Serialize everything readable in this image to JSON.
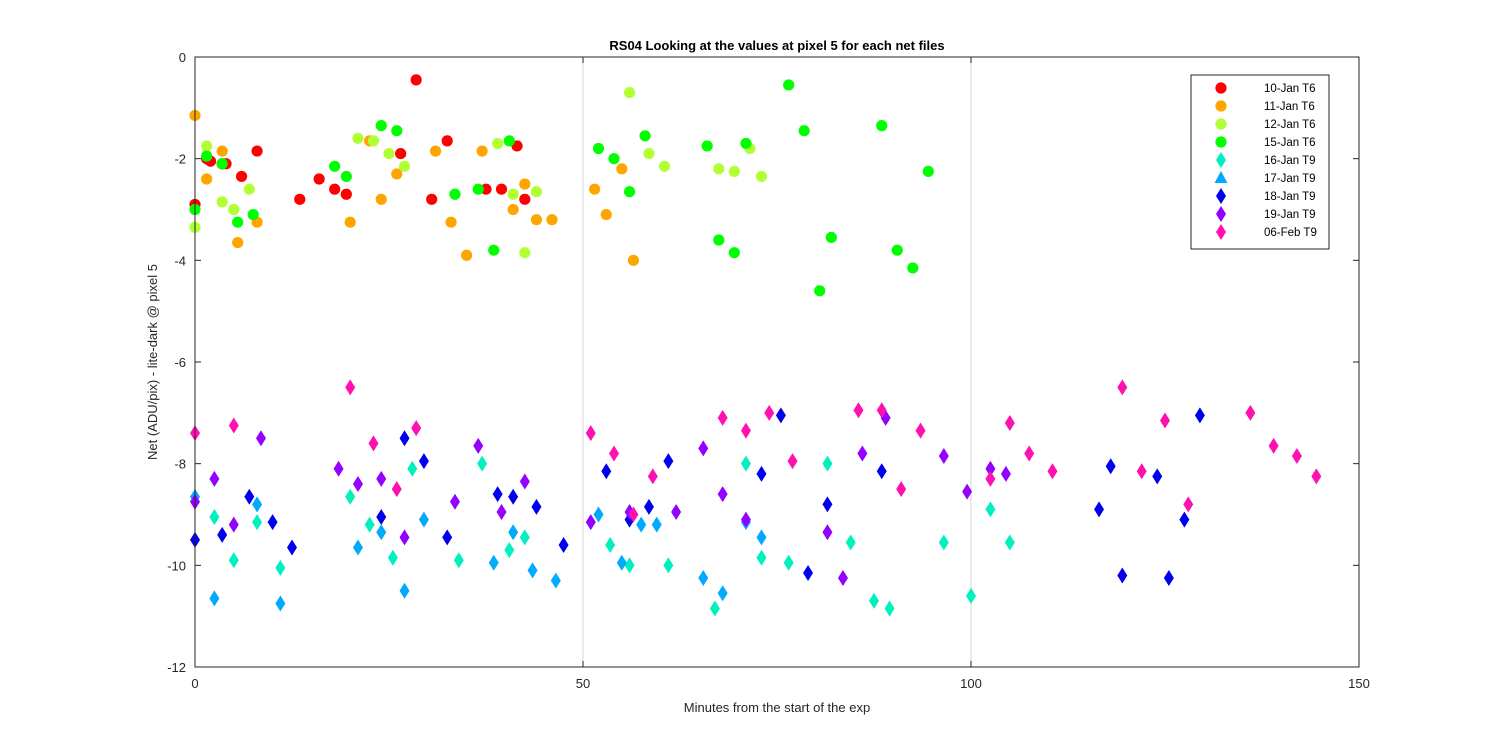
{
  "chart_data": {
    "type": "scatter",
    "title": "RS04  Looking at the values at pixel 5 for each net files",
    "xlabel": "Minutes from the start of the exp",
    "ylabel": "Net (ADU/pix) - lite-dark @ pixel 5",
    "xlim": [
      0,
      150
    ],
    "ylim": [
      -12,
      0
    ],
    "xticks": [
      0,
      50,
      100,
      150
    ],
    "yticks": [
      0,
      -2,
      -4,
      -6,
      -8,
      -10,
      -12
    ],
    "xtick_labels": [
      "0",
      "50",
      "100",
      "150"
    ],
    "ytick_labels": [
      "0",
      "-2",
      "-4",
      "-6",
      "-8",
      "-10",
      "-12"
    ],
    "grid_x": [
      50,
      100
    ],
    "legend_position": "top-right",
    "series": [
      {
        "name": "10-Jan T6",
        "marker": "circle",
        "color": "#ff0000",
        "points": [
          [
            0,
            -2.9
          ],
          [
            1.5,
            -2.0
          ],
          [
            2,
            -2.05
          ],
          [
            3.5,
            -2.1
          ],
          [
            4,
            -2.1
          ],
          [
            6,
            -2.35
          ],
          [
            8,
            -1.85
          ],
          [
            13.5,
            -2.8
          ],
          [
            16,
            -2.4
          ],
          [
            18,
            -2.6
          ],
          [
            19.5,
            -2.7
          ],
          [
            26.5,
            -1.9
          ],
          [
            28.5,
            -0.45
          ],
          [
            30.5,
            -2.8
          ],
          [
            32.5,
            -1.65
          ],
          [
            37.5,
            -2.6
          ],
          [
            39.5,
            -2.6
          ],
          [
            41.5,
            -1.75
          ],
          [
            42.5,
            -2.8
          ]
        ]
      },
      {
        "name": "11-Jan T6",
        "marker": "circle",
        "color": "#ffa500",
        "points": [
          [
            0,
            -1.15
          ],
          [
            1.5,
            -2.4
          ],
          [
            3.5,
            -1.85
          ],
          [
            5.5,
            -3.65
          ],
          [
            8,
            -3.25
          ],
          [
            20,
            -3.25
          ],
          [
            22.5,
            -1.65
          ],
          [
            24,
            -2.8
          ],
          [
            26,
            -2.3
          ],
          [
            31,
            -1.85
          ],
          [
            33,
            -3.25
          ],
          [
            35,
            -3.9
          ],
          [
            37,
            -1.85
          ],
          [
            41,
            -3.0
          ],
          [
            42.5,
            -2.5
          ],
          [
            44,
            -3.2
          ],
          [
            46,
            -3.2
          ],
          [
            51.5,
            -2.6
          ],
          [
            53,
            -3.1
          ],
          [
            55,
            -2.2
          ],
          [
            56.5,
            -4.0
          ]
        ]
      },
      {
        "name": "12-Jan T6",
        "marker": "circle",
        "color": "#b2ff33",
        "points": [
          [
            0,
            -3.35
          ],
          [
            1.5,
            -1.75
          ],
          [
            3.5,
            -2.85
          ],
          [
            5,
            -3.0
          ],
          [
            7,
            -2.6
          ],
          [
            21,
            -1.6
          ],
          [
            23,
            -1.65
          ],
          [
            25,
            -1.9
          ],
          [
            27,
            -2.15
          ],
          [
            39,
            -1.7
          ],
          [
            41,
            -2.7
          ],
          [
            42.5,
            -3.85
          ],
          [
            44,
            -2.65
          ],
          [
            56,
            -0.7
          ],
          [
            58.5,
            -1.9
          ],
          [
            60.5,
            -2.15
          ],
          [
            67.5,
            -2.2
          ],
          [
            69.5,
            -2.25
          ],
          [
            71.5,
            -1.8
          ],
          [
            73,
            -2.35
          ]
        ]
      },
      {
        "name": "15-Jan T6",
        "marker": "circle",
        "color": "#00ff00",
        "points": [
          [
            0,
            -3.0
          ],
          [
            1.5,
            -1.95
          ],
          [
            3.5,
            -2.1
          ],
          [
            5.5,
            -3.25
          ],
          [
            7.5,
            -3.1
          ],
          [
            18,
            -2.15
          ],
          [
            19.5,
            -2.35
          ],
          [
            24,
            -1.35
          ],
          [
            26,
            -1.45
          ],
          [
            33.5,
            -2.7
          ],
          [
            36.5,
            -2.6
          ],
          [
            38.5,
            -3.8
          ],
          [
            40.5,
            -1.65
          ],
          [
            52,
            -1.8
          ],
          [
            54,
            -2.0
          ],
          [
            56,
            -2.65
          ],
          [
            58,
            -1.55
          ],
          [
            66,
            -1.75
          ],
          [
            67.5,
            -3.6
          ],
          [
            69.5,
            -3.85
          ],
          [
            71,
            -1.7
          ],
          [
            76.5,
            -0.55
          ],
          [
            78.5,
            -1.45
          ],
          [
            80.5,
            -4.6
          ],
          [
            82,
            -3.55
          ],
          [
            88.5,
            -1.35
          ],
          [
            90.5,
            -3.8
          ],
          [
            92.5,
            -4.15
          ],
          [
            94.5,
            -2.25
          ]
        ]
      },
      {
        "name": "16-Jan T9",
        "marker": "diamond",
        "color": "#00f0c0",
        "points": [
          [
            2.5,
            -9.05
          ],
          [
            5,
            -9.9
          ],
          [
            8,
            -9.15
          ],
          [
            11,
            -10.05
          ],
          [
            20,
            -8.65
          ],
          [
            22.5,
            -9.2
          ],
          [
            25.5,
            -9.85
          ],
          [
            28,
            -8.1
          ],
          [
            34,
            -9.9
          ],
          [
            37,
            -8.0
          ],
          [
            40.5,
            -9.7
          ],
          [
            42.5,
            -9.45
          ],
          [
            53.5,
            -9.6
          ],
          [
            56,
            -10.0
          ],
          [
            61,
            -10.0
          ],
          [
            67,
            -10.85
          ],
          [
            71,
            -8.0
          ],
          [
            73,
            -9.85
          ],
          [
            76.5,
            -9.95
          ],
          [
            81.5,
            -8.0
          ],
          [
            84.5,
            -9.55
          ],
          [
            87.5,
            -10.7
          ],
          [
            89.5,
            -10.85
          ],
          [
            96.5,
            -9.55
          ],
          [
            100,
            -10.6
          ],
          [
            102.5,
            -8.9
          ],
          [
            105,
            -9.55
          ]
        ]
      },
      {
        "name": "17-Jan T9",
        "marker": "diamond",
        "color": "#00aaff",
        "points": [
          [
            0,
            -8.65
          ],
          [
            2.5,
            -10.65
          ],
          [
            8,
            -8.8
          ],
          [
            11,
            -10.75
          ],
          [
            21,
            -9.65
          ],
          [
            24,
            -9.35
          ],
          [
            27,
            -10.5
          ],
          [
            29.5,
            -9.1
          ],
          [
            38.5,
            -9.95
          ],
          [
            41,
            -9.35
          ],
          [
            43.5,
            -10.1
          ],
          [
            46.5,
            -10.3
          ],
          [
            52,
            -9.0
          ],
          [
            55,
            -9.95
          ],
          [
            57.5,
            -9.2
          ],
          [
            59.5,
            -9.2
          ],
          [
            65.5,
            -10.25
          ],
          [
            68,
            -10.55
          ],
          [
            71,
            -9.15
          ],
          [
            73,
            -9.45
          ]
        ]
      },
      {
        "name": "18-Jan T9",
        "marker": "diamond",
        "color": "#0000ee",
        "points": [
          [
            0,
            -9.5
          ],
          [
            3.5,
            -9.4
          ],
          [
            7,
            -8.65
          ],
          [
            10,
            -9.15
          ],
          [
            12.5,
            -9.65
          ],
          [
            24,
            -9.05
          ],
          [
            27,
            -7.5
          ],
          [
            29.5,
            -7.95
          ],
          [
            32.5,
            -9.45
          ],
          [
            39,
            -8.6
          ],
          [
            41,
            -8.65
          ],
          [
            44,
            -8.85
          ],
          [
            47.5,
            -9.6
          ],
          [
            53,
            -8.15
          ],
          [
            56,
            -9.1
          ],
          [
            58.5,
            -8.85
          ],
          [
            61,
            -7.95
          ],
          [
            73,
            -8.2
          ],
          [
            75.5,
            -7.05
          ],
          [
            79,
            -10.15
          ],
          [
            81.5,
            -8.8
          ],
          [
            88.5,
            -8.15
          ],
          [
            116.5,
            -8.9
          ],
          [
            118,
            -8.05
          ],
          [
            119.5,
            -10.2
          ],
          [
            124,
            -8.25
          ],
          [
            125.5,
            -10.25
          ],
          [
            127.5,
            -9.1
          ],
          [
            129.5,
            -7.05
          ]
        ]
      },
      {
        "name": "19-Jan T9",
        "marker": "diamond",
        "color": "#9400ff",
        "points": [
          [
            0,
            -8.75
          ],
          [
            2.5,
            -8.3
          ],
          [
            5,
            -9.2
          ],
          [
            8.5,
            -7.5
          ],
          [
            18.5,
            -8.1
          ],
          [
            21,
            -8.4
          ],
          [
            24,
            -8.3
          ],
          [
            27,
            -9.45
          ],
          [
            33.5,
            -8.75
          ],
          [
            36.5,
            -7.65
          ],
          [
            39.5,
            -8.95
          ],
          [
            42.5,
            -8.35
          ],
          [
            51,
            -9.15
          ],
          [
            56,
            -8.95
          ],
          [
            62,
            -8.95
          ],
          [
            65.5,
            -7.7
          ],
          [
            68,
            -8.6
          ],
          [
            71,
            -9.1
          ],
          [
            81.5,
            -9.35
          ],
          [
            83.5,
            -10.25
          ],
          [
            86,
            -7.8
          ],
          [
            89,
            -7.1
          ],
          [
            96.5,
            -7.85
          ],
          [
            99.5,
            -8.55
          ],
          [
            102.5,
            -8.1
          ],
          [
            104.5,
            -8.2
          ]
        ]
      },
      {
        "name": "06-Feb T9",
        "marker": "diamond",
        "color": "#ff10b0",
        "points": [
          [
            0,
            -7.4
          ],
          [
            5,
            -7.25
          ],
          [
            20,
            -6.5
          ],
          [
            23,
            -7.6
          ],
          [
            26,
            -8.5
          ],
          [
            28.5,
            -7.3
          ],
          [
            51,
            -7.4
          ],
          [
            54,
            -7.8
          ],
          [
            56.5,
            -9.0
          ],
          [
            59,
            -8.25
          ],
          [
            68,
            -7.1
          ],
          [
            71,
            -7.35
          ],
          [
            74,
            -7.0
          ],
          [
            77,
            -7.95
          ],
          [
            85.5,
            -6.95
          ],
          [
            88.5,
            -6.95
          ],
          [
            91,
            -8.5
          ],
          [
            93.5,
            -7.35
          ],
          [
            102.5,
            -8.3
          ],
          [
            105,
            -7.2
          ],
          [
            107.5,
            -7.8
          ],
          [
            110.5,
            -8.15
          ],
          [
            119.5,
            -6.5
          ],
          [
            122,
            -8.15
          ],
          [
            125,
            -7.15
          ],
          [
            128,
            -8.8
          ],
          [
            136,
            -7.0
          ],
          [
            139,
            -7.65
          ],
          [
            142,
            -7.85
          ],
          [
            144.5,
            -8.25
          ]
        ]
      }
    ]
  }
}
